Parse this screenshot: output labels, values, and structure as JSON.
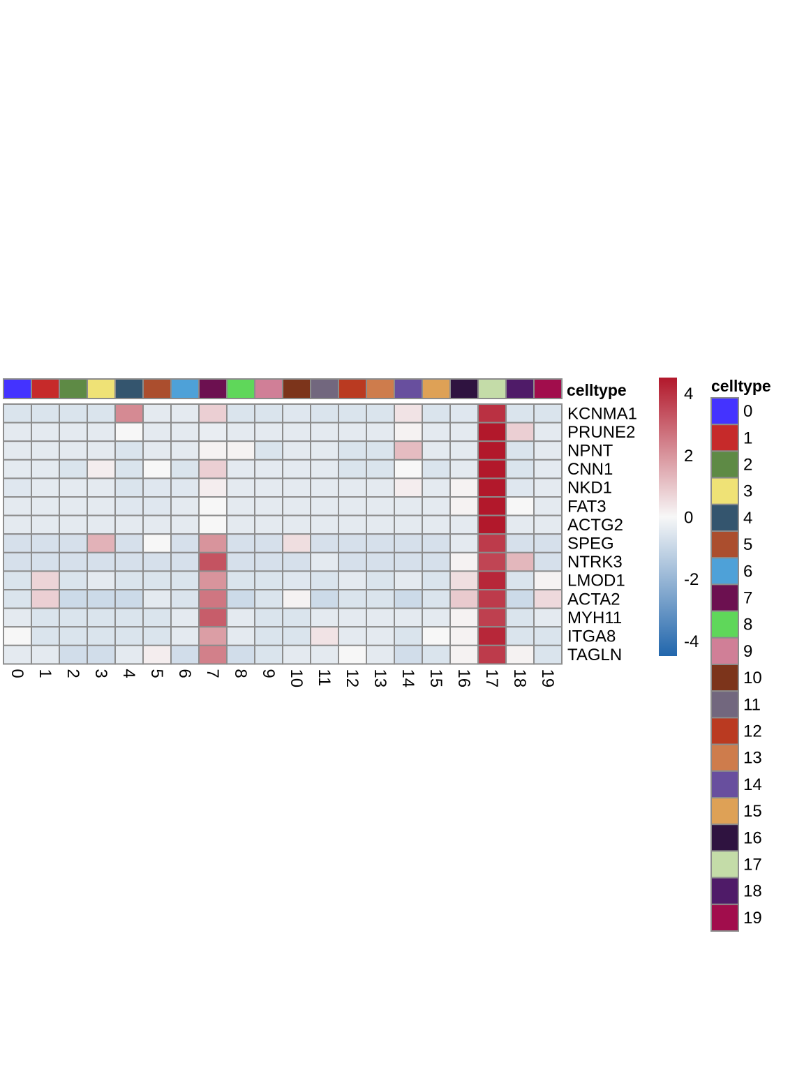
{
  "chart_data": {
    "type": "heatmap",
    "annotation_title": "celltype",
    "legend_title": "celltype",
    "columns": [
      "0",
      "1",
      "2",
      "3",
      "4",
      "5",
      "6",
      "7",
      "8",
      "9",
      "10",
      "11",
      "12",
      "13",
      "14",
      "15",
      "16",
      "17",
      "18",
      "19"
    ],
    "rows": [
      "KCNMA1",
      "PRUNE2",
      "NPNT",
      "CNN1",
      "NKD1",
      "FAT3",
      "ACTG2",
      "SPEG",
      "NTRK3",
      "LMOD1",
      "ACTA2",
      "MYH11",
      "ITGA8",
      "TAGLN"
    ],
    "values": [
      [
        -0.6,
        -0.6,
        -0.6,
        -0.6,
        2.2,
        -0.4,
        -0.4,
        0.8,
        -0.6,
        -0.6,
        -0.5,
        -0.6,
        -0.6,
        -0.6,
        0.4,
        -0.6,
        -0.5,
        4.0,
        -0.6,
        -0.6
      ],
      [
        -0.4,
        -0.4,
        -0.4,
        -0.4,
        0.0,
        -0.4,
        -0.4,
        -0.3,
        -0.4,
        -0.4,
        -0.4,
        -0.4,
        -0.4,
        -0.4,
        0.1,
        -0.4,
        -0.4,
        4.5,
        0.8,
        -0.4
      ],
      [
        -0.4,
        -0.4,
        -0.4,
        -0.4,
        -0.6,
        -0.4,
        -0.4,
        0.1,
        0.1,
        -0.6,
        -0.4,
        -0.4,
        -0.6,
        -0.6,
        1.2,
        -0.4,
        -0.4,
        4.5,
        -0.6,
        -0.4
      ],
      [
        -0.4,
        -0.4,
        -0.6,
        0.2,
        -0.6,
        0.0,
        -0.6,
        0.8,
        -0.4,
        -0.4,
        -0.4,
        -0.4,
        -0.6,
        -0.6,
        0.0,
        -0.6,
        -0.4,
        4.5,
        -0.6,
        -0.4
      ],
      [
        -0.5,
        -0.4,
        -0.4,
        -0.4,
        -0.6,
        -0.5,
        -0.5,
        0.2,
        -0.4,
        -0.4,
        -0.4,
        -0.4,
        -0.4,
        -0.4,
        0.2,
        -0.4,
        0.1,
        4.5,
        -0.5,
        -0.4
      ],
      [
        -0.4,
        -0.4,
        -0.4,
        -0.4,
        -0.5,
        -0.5,
        -0.4,
        0.0,
        -0.4,
        -0.4,
        -0.4,
        -0.4,
        -0.4,
        -0.4,
        -0.4,
        -0.4,
        0.1,
        4.5,
        0.0,
        -0.4
      ],
      [
        -0.4,
        -0.4,
        -0.4,
        -0.4,
        -0.4,
        -0.4,
        -0.4,
        0.0,
        -0.4,
        -0.4,
        -0.4,
        -0.4,
        -0.4,
        -0.4,
        -0.4,
        -0.4,
        -0.4,
        4.5,
        -0.4,
        -0.4
      ],
      [
        -0.7,
        -0.7,
        -0.7,
        1.4,
        -0.7,
        0.0,
        -0.7,
        2.0,
        -0.7,
        -0.7,
        0.5,
        -0.7,
        -0.7,
        -0.7,
        -0.7,
        -0.7,
        -0.4,
        3.8,
        -0.7,
        -0.7
      ],
      [
        -0.7,
        -0.7,
        -0.7,
        -0.7,
        -0.7,
        -0.7,
        -0.7,
        3.3,
        -0.7,
        -0.7,
        -0.7,
        -0.4,
        -0.7,
        -0.7,
        -0.7,
        -0.7,
        0.1,
        3.6,
        1.3,
        -0.7
      ],
      [
        -0.6,
        0.7,
        -0.6,
        -0.4,
        -0.6,
        -0.6,
        -0.6,
        2.0,
        -0.6,
        -0.6,
        -0.5,
        -0.6,
        -0.4,
        -0.6,
        -0.4,
        -0.6,
        0.5,
        4.2,
        -0.6,
        0.1
      ],
      [
        -0.6,
        0.8,
        -0.9,
        -0.9,
        -0.9,
        -0.4,
        -0.6,
        2.6,
        -0.9,
        -0.6,
        0.1,
        -0.9,
        -0.6,
        -0.6,
        -0.9,
        -0.6,
        0.9,
        3.8,
        -0.9,
        0.6
      ],
      [
        -0.4,
        -0.6,
        -0.6,
        -0.6,
        -0.6,
        -0.6,
        -0.4,
        3.1,
        -0.4,
        -0.6,
        -0.6,
        -0.4,
        -0.4,
        -0.4,
        -0.4,
        -0.4,
        0.1,
        3.7,
        -0.6,
        -0.4
      ],
      [
        0.0,
        -0.6,
        -0.6,
        -0.6,
        -0.6,
        -0.6,
        -0.4,
        1.8,
        -0.4,
        -0.6,
        -0.6,
        0.4,
        -0.4,
        -0.4,
        -0.6,
        0.0,
        0.1,
        4.2,
        -0.6,
        -0.6
      ],
      [
        -0.4,
        -0.4,
        -0.8,
        -0.8,
        -0.4,
        0.2,
        -0.8,
        2.4,
        -0.8,
        -0.6,
        -0.4,
        -0.4,
        0.0,
        -0.4,
        -0.8,
        -0.6,
        0.1,
        3.8,
        0.1,
        -0.6
      ]
    ],
    "color_scale": {
      "min": -4.5,
      "max": 4.5,
      "low_color": "#2166ac",
      "mid_color": "#f7f7f7",
      "high_color": "#b2182b",
      "ticks": [
        {
          "value": 4,
          "label": "4"
        },
        {
          "value": 2,
          "label": "2"
        },
        {
          "value": 0,
          "label": "0"
        },
        {
          "value": -2,
          "label": "-2"
        },
        {
          "value": -4,
          "label": "-4"
        }
      ]
    },
    "celltype_colors": [
      "#4433ff",
      "#c62a2a",
      "#5e8a45",
      "#efe276",
      "#34556e",
      "#ab4e2e",
      "#4ea1d8",
      "#6c1050",
      "#5fd75a",
      "#d07f97",
      "#7c341b",
      "#72677e",
      "#ba3a21",
      "#ce7c4c",
      "#684f9e",
      "#dea156",
      "#2f1340",
      "#c4dca8",
      "#4f1b68",
      "#a10d4c"
    ],
    "grid_line_color": "#8c8c8c",
    "legend_title_display": "celltype"
  }
}
